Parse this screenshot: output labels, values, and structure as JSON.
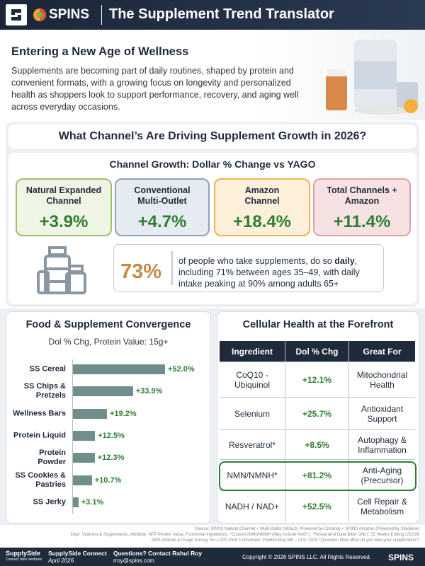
{
  "header": {
    "logo": "SPINS",
    "title": "The Supplement Trend Translator"
  },
  "intro": {
    "title": "Entering a New Age of Wellness",
    "text": "Supplements are becoming part of daily routines, shaped by protein and convenient formats, with a growing focus on longevity and personalized health as shoppers look to support performance, recovery, and aging well across everyday occasions."
  },
  "channels": {
    "title": "What Channel’s Are Driving Supplement Growth in 2026?",
    "subtitle": "Channel Growth: Dollar % Change vs YAGO",
    "cards": [
      {
        "name": "Natural Expanded Channel",
        "value": "+3.9%"
      },
      {
        "name": "Conventional Multi-Outlet",
        "value": "+4.7%"
      },
      {
        "name": "Amazon Channel",
        "value": "+18.4%"
      },
      {
        "name": "Total Channels + Amazon",
        "value": "+11.4%"
      }
    ]
  },
  "stat": {
    "value": "73%",
    "text_before": "of people who take supplements, do so ",
    "emphasis": "daily",
    "text_after": ", including 71% between ages 35–49, with daily intake peaking at 90% among adults 65+"
  },
  "chart_data": {
    "type": "bar",
    "orientation": "horizontal",
    "title": "Food & Supplement Convergence",
    "subtitle": "Dol % Chg, Protein Value: 15g+",
    "categories": [
      "SS Cereal",
      "SS Chips & Pretzels",
      "Wellness Bars",
      "Protein Liquid",
      "Protein Powder",
      "SS Cookies & Pastries",
      "SS Jerky"
    ],
    "values": [
      52.0,
      33.9,
      19.2,
      12.5,
      12.3,
      10.7,
      3.1
    ],
    "value_labels": [
      "+52.0%",
      "+33.9%",
      "+19.2%",
      "+12.5%",
      "+12.3%",
      "+10.7%",
      "+3.1%"
    ],
    "color": "#6f8e8c"
  },
  "table": {
    "title": "Cellular Health at the Forefront",
    "header": [
      "Ingredient",
      "Dol % Chg",
      "Great For"
    ],
    "rows": [
      [
        "CoQ10 - Ubiquinol",
        "+12.1%",
        "Mitochondrial Health"
      ],
      [
        "Selenium",
        "+25.7%",
        "Antioxidant Support"
      ],
      [
        "Resveratrol*",
        "+8.5%",
        "Autophagy & Inflammation"
      ],
      [
        "NMN/NMNH*",
        "+81.2%",
        "Anti-Aging (Precursor)"
      ],
      [
        "NADH / NAD+",
        "+52.5%",
        "Cell Repair & Metabolism"
      ]
    ]
  },
  "source": [
    "Source: SPINS Natural Channel + Multi-Outlet (MULO) (Powered by Circana) + SPINS Amazon (Powered by Stackline)",
    "Dept: Vitamins & Supplements, Attribute: NFP Protein Value, Functional Ingredients, *Custom NMN/NMNH (May include NAD+), *Resveratrol Data B&M ONLY, 52 Weeks Ending 2/22/26",
    "VMS Attitude & Usage Survey, N= 1,000 VMS Consumers; Fielded May 9th – 21st, 2025 *Question: How often do you take your supplements?"
  ],
  "footer": {
    "brand": "SupplySide",
    "brand_sub": "Connect New Ventures",
    "event": "SupplySide Connect",
    "date": "April 2026",
    "contact": "Questions? Contact Rahul Roy",
    "email": "rroy@spins.com",
    "copyright": "Copyright © 2026 SPINS LLC. All Rights Reserved.",
    "logo": "SPINS"
  }
}
